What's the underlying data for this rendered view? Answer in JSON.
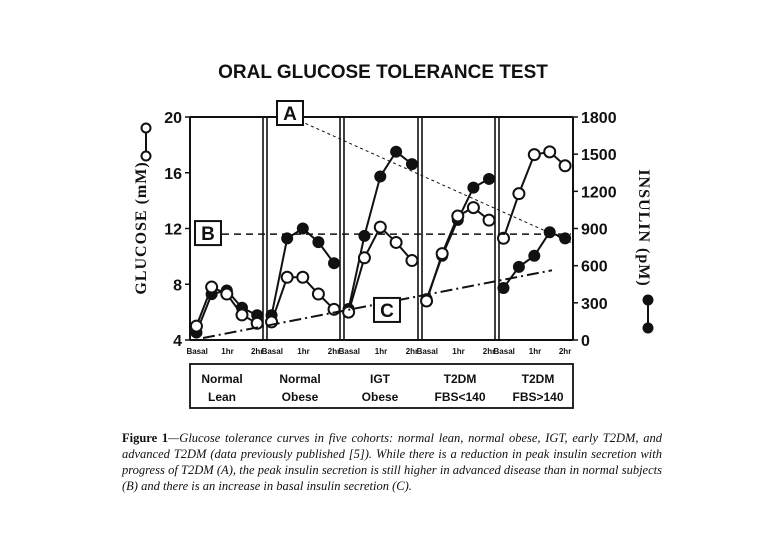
{
  "chart_data": {
    "type": "line",
    "title": "ORAL GLUCOSE TOLERANCE TEST",
    "ylabel": "GLUCOSE (mM)",
    "y2label": "INSULIN (pM)",
    "ylim": [
      4,
      20
    ],
    "y2lim": [
      0,
      1800
    ],
    "yticks": [
      "20",
      "16",
      "12",
      "8",
      "4"
    ],
    "y2ticks": [
      "1800",
      "1500",
      "1200",
      "900",
      "600",
      "300",
      "0"
    ],
    "x_tick_labels": [
      "Basal",
      "1hr",
      "2hr"
    ],
    "legend_marker_left": "open-circle-line",
    "legend_marker_right": "filled-circle-line",
    "grid": false,
    "panels": [
      {
        "line1": "Normal",
        "line2": "Lean",
        "glucose": [
          5.0,
          7.8,
          7.3,
          5.8,
          5.2
        ],
        "insulin": [
          60,
          370,
          400,
          260,
          200
        ]
      },
      {
        "line1": "Normal",
        "line2": "Obese",
        "glucose": [
          5.3,
          8.5,
          8.5,
          7.3,
          6.2
        ],
        "insulin": [
          200,
          820,
          900,
          790,
          620
        ]
      },
      {
        "line1": "IGT",
        "line2": "Obese",
        "glucose": [
          6.0,
          9.9,
          12.1,
          11.0,
          9.7
        ],
        "insulin": [
          250,
          840,
          1320,
          1520,
          1420
        ]
      },
      {
        "line1": "T2DM",
        "line2": "FBS<140",
        "glucose": [
          6.8,
          10.2,
          12.9,
          13.5,
          12.6
        ],
        "insulin": [
          330,
          680,
          970,
          1230,
          1300
        ]
      },
      {
        "line1": "T2DM",
        "line2": "FBS>140",
        "glucose": [
          11.3,
          14.5,
          17.3,
          17.5,
          16.5
        ],
        "insulin": [
          420,
          590,
          680,
          870,
          820
        ]
      }
    ],
    "annotations": [
      {
        "label": "A",
        "style": "dotted",
        "from_glucose": 20,
        "to_glucose": 11
      },
      {
        "label": "B",
        "style": "dashed",
        "glucose": 11.6
      },
      {
        "label": "C",
        "style": "dash-dot",
        "from_glucose": 4,
        "to_glucose": 9
      }
    ]
  },
  "caption": {
    "label": "Figure 1",
    "text": "—Glucose tolerance curves in five cohorts: normal lean, normal obese, IGT, early T2DM, and advanced T2DM (data previously published [5]). While there is a reduction in peak insulin secretion with progress of T2DM (A), the peak insulin secretion is still higher in advanced disease than in normal subjects (B) and there is an increase in basal insulin secretion (C)."
  }
}
